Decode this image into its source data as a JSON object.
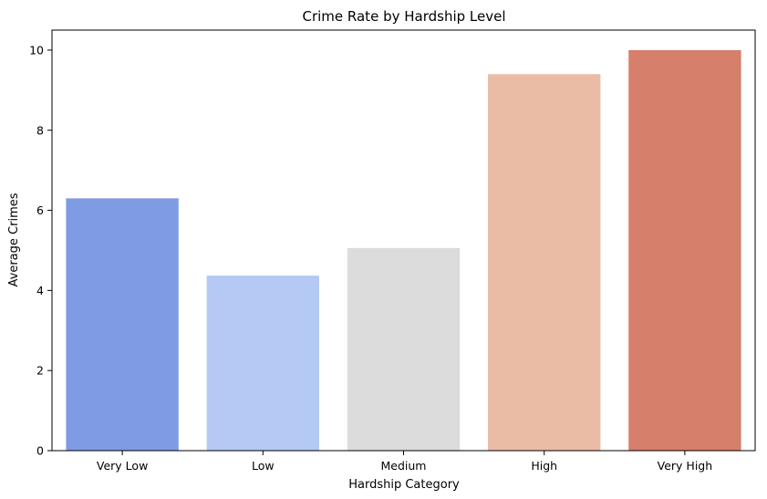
{
  "chart_data": {
    "type": "bar",
    "title": "Crime Rate by Hardship Level",
    "xlabel": "Hardship Category",
    "ylabel": "Average Crimes",
    "categories": [
      "Very Low",
      "Low",
      "Medium",
      "High",
      "Very High"
    ],
    "values": [
      6.3,
      4.37,
      5.06,
      9.4,
      10.0
    ],
    "colors": [
      "#7f9be3",
      "#b4c9f4",
      "#dddcdc",
      "#ebbca5",
      "#d67f6b"
    ],
    "ylim": [
      0,
      10.5
    ],
    "yticks": [
      0,
      2,
      4,
      6,
      8,
      10
    ],
    "grid": false,
    "legend": "none"
  }
}
